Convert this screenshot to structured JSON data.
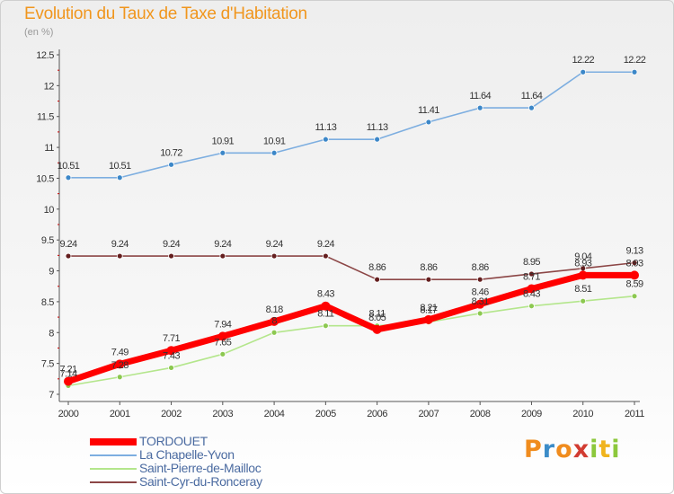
{
  "chart_data": {
    "type": "line",
    "title": "Evolution du Taux de Taxe d'Habitation",
    "subtitle": "(en %)",
    "x": [
      "2000",
      "2001",
      "2002",
      "2003",
      "2004",
      "2005",
      "2006",
      "2007",
      "2008",
      "2009",
      "2010",
      "2011"
    ],
    "ylim": [
      7,
      12.5
    ],
    "yticks": [
      "7",
      "7.5",
      "8",
      "8.5",
      "9",
      "9.5",
      "10",
      "10.5",
      "11",
      "11.5",
      "12",
      "12.5"
    ],
    "grid": false,
    "legend_position": "bottom-left",
    "series": [
      {
        "name": "TORDOUET",
        "color": "#ff0000",
        "marker": "#ff0000",
        "values": [
          7.21,
          7.49,
          7.71,
          7.94,
          8.18,
          8.43,
          8.05,
          8.21,
          8.46,
          8.71,
          8.93,
          8.93
        ],
        "labels": [
          "7.21",
          "7.49",
          "7.71",
          "7.94",
          "8.18",
          "8.43",
          "8.05",
          "8.21",
          "8.46",
          "8.71",
          "8.93",
          "8.93"
        ]
      },
      {
        "name": "La Chapelle-Yvon",
        "color": "#7daee0",
        "marker": "#3c87c8",
        "values": [
          10.51,
          10.51,
          10.72,
          10.91,
          10.91,
          11.13,
          11.13,
          11.41,
          11.64,
          11.64,
          12.22,
          12.22
        ],
        "labels": [
          "10.51",
          "10.51",
          "10.72",
          "10.91",
          "10.91",
          "11.13",
          "11.13",
          "11.41",
          "11.64",
          "11.64",
          "12.22",
          "12.22"
        ]
      },
      {
        "name": "Saint-Pierre-de-Mailloc",
        "color": "#b4e68c",
        "marker": "#8cc850",
        "values": [
          7.14,
          7.28,
          7.43,
          7.65,
          8.0,
          8.11,
          8.11,
          8.17,
          8.31,
          8.43,
          8.51,
          8.59
        ],
        "labels": [
          "7.14",
          "7.28",
          "7.43",
          "7.65",
          "8",
          "8.11",
          "8.11",
          "8.17",
          "8.31",
          "8.43",
          "8.51",
          "8.59"
        ]
      },
      {
        "name": "Saint-Cyr-du-Ronceray",
        "color": "#8c4646",
        "marker": "#641e1e",
        "values": [
          9.24,
          9.24,
          9.24,
          9.24,
          9.24,
          9.24,
          8.86,
          8.86,
          8.86,
          8.95,
          9.04,
          9.13
        ],
        "labels": [
          "9.24",
          "9.24",
          "9.24",
          "9.24",
          "9.24",
          "9.24",
          "8.86",
          "8.86",
          "8.86",
          "8.95",
          "9.04",
          "9.13"
        ]
      }
    ]
  },
  "logo": {
    "letters": [
      "P",
      "r",
      "o",
      "x",
      "i",
      "t",
      "i"
    ],
    "colors": [
      "#f08c1e",
      "#3c8cc8",
      "#f08c1e",
      "#d23c32",
      "#8cc83c",
      "#f0b41e",
      "#8cc83c"
    ]
  }
}
